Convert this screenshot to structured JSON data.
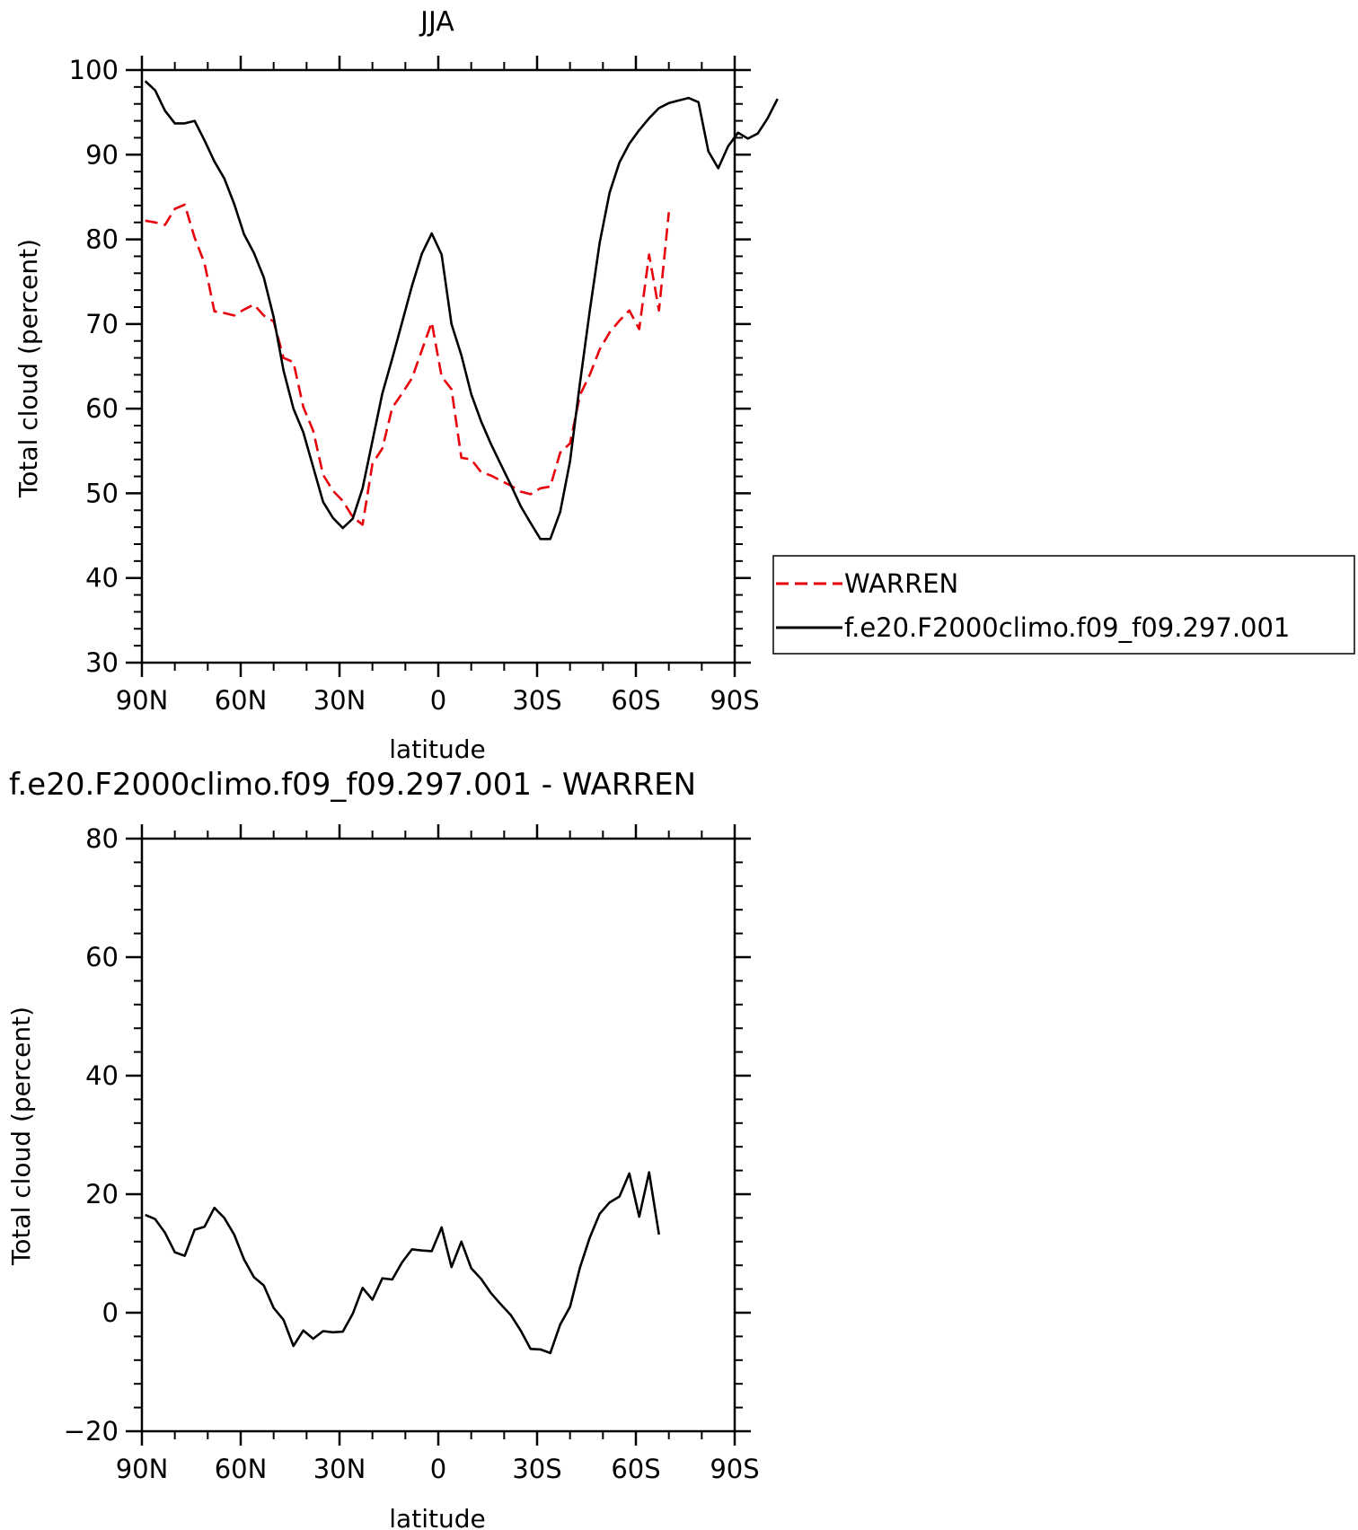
{
  "chart_data": [
    {
      "type": "line",
      "title": "JJA",
      "xlabel": "latitude",
      "ylabel": "Total cloud (percent)",
      "xlim": [
        90,
        -90
      ],
      "ylim": [
        30,
        100
      ],
      "xticks": [
        90,
        60,
        30,
        0,
        -30,
        -60,
        -90
      ],
      "xtick_labels": [
        "90N",
        "60N",
        "30N",
        "0",
        "30S",
        "60S",
        "90S"
      ],
      "yticks": [
        30,
        40,
        50,
        60,
        70,
        80,
        90,
        100
      ],
      "ytick_labels": [
        "30",
        "40",
        "50",
        "60",
        "70",
        "80",
        "90",
        "100"
      ],
      "legend_position": "right",
      "series": [
        {
          "name": "WARREN",
          "color": "#e8000b",
          "dash": "dashed",
          "points": [
            [
              89,
              82.2
            ],
            [
              86,
              82
            ],
            [
              83,
              81.7
            ],
            [
              80,
              83.6
            ],
            [
              77,
              84.1
            ],
            [
              74,
              80.2
            ],
            [
              71,
              77.2
            ],
            [
              68,
              71.5
            ],
            [
              65,
              71.3
            ],
            [
              62,
              71
            ],
            [
              59,
              71.7
            ],
            [
              56,
              72.3
            ],
            [
              53,
              71
            ],
            [
              50,
              70.3
            ],
            [
              47,
              66
            ],
            [
              44,
              65.5
            ],
            [
              41,
              60.2
            ],
            [
              38,
              57.4
            ],
            [
              35,
              52.2
            ],
            [
              32,
              50.3
            ],
            [
              29,
              49.1
            ],
            [
              26,
              47.2
            ],
            [
              23,
              46.3
            ],
            [
              20,
              53.5
            ],
            [
              17,
              55.3
            ],
            [
              14,
              60.1
            ],
            [
              11,
              61.8
            ],
            [
              8,
              63.6
            ],
            [
              5,
              66.9
            ],
            [
              2,
              70.2
            ],
            [
              -1,
              63.8
            ],
            [
              -4,
              62.3
            ],
            [
              -7,
              54.2
            ],
            [
              -10,
              54
            ],
            [
              -13,
              52.5
            ],
            [
              -16,
              52.1
            ],
            [
              -19,
              51.5
            ],
            [
              -22,
              50.9
            ],
            [
              -25,
              50.2
            ],
            [
              -28,
              49.9
            ],
            [
              -31,
              50.6
            ],
            [
              -34,
              50.8
            ],
            [
              -37,
              54.8
            ],
            [
              -40,
              55.9
            ],
            [
              -43,
              61.6
            ],
            [
              -46,
              64
            ],
            [
              -49,
              67
            ],
            [
              -52,
              69
            ],
            [
              -55,
              70.4
            ],
            [
              -58,
              71.6
            ],
            [
              -61,
              69.4
            ],
            [
              -64,
              78.2
            ],
            [
              -67,
              71.6
            ],
            [
              -70,
              83.2
            ]
          ]
        },
        {
          "name": "f.e20.F2000climo.f09_f09.297.001",
          "color": "#000000",
          "dash": "solid",
          "points": [
            [
              89,
              98.7
            ],
            [
              86,
              97.6
            ],
            [
              83,
              95.2
            ],
            [
              80,
              93.7
            ],
            [
              77,
              93.7
            ],
            [
              74,
              94
            ],
            [
              71,
              91.7
            ],
            [
              68,
              89.2
            ],
            [
              65,
              87.2
            ],
            [
              62,
              84.2
            ],
            [
              59,
              80.6
            ],
            [
              56,
              78.4
            ],
            [
              53,
              75.5
            ],
            [
              50,
              70.8
            ],
            [
              47,
              64.5
            ],
            [
              44,
              60
            ],
            [
              41,
              57.2
            ],
            [
              38,
              53.1
            ],
            [
              35,
              49
            ],
            [
              32,
              47.1
            ],
            [
              29,
              45.9
            ],
            [
              26,
              47
            ],
            [
              23,
              50.6
            ],
            [
              20,
              56.2
            ],
            [
              17,
              61.8
            ],
            [
              14,
              65.9
            ],
            [
              11,
              70.2
            ],
            [
              8,
              74.5
            ],
            [
              5,
              78.3
            ],
            [
              2,
              80.7
            ],
            [
              -1,
              78.2
            ],
            [
              -4,
              70
            ],
            [
              -7,
              66.3
            ],
            [
              -10,
              61.7
            ],
            [
              -13,
              58.5
            ],
            [
              -16,
              55.8
            ],
            [
              -19,
              53.4
            ],
            [
              -22,
              51
            ],
            [
              -25,
              48.5
            ],
            [
              -28,
              46.5
            ],
            [
              -31,
              44.6
            ],
            [
              -34,
              44.6
            ],
            [
              -37,
              47.8
            ],
            [
              -40,
              53.8
            ],
            [
              -43,
              63
            ],
            [
              -46,
              71.6
            ],
            [
              -49,
              79.6
            ],
            [
              -52,
              85.5
            ],
            [
              -55,
              89.1
            ],
            [
              -58,
              91.3
            ],
            [
              -61,
              92.9
            ],
            [
              -64,
              94.3
            ],
            [
              -67,
              95.5
            ],
            [
              -70,
              96.1
            ],
            [
              -73,
              96.4
            ],
            [
              -76,
              96.7
            ],
            [
              -79,
              96.2
            ],
            [
              -82,
              90.4
            ],
            [
              -85,
              88.4
            ],
            [
              -88,
              91
            ],
            [
              -91,
              92.6
            ],
            [
              -94,
              91.9
            ],
            [
              -97,
              92.5
            ],
            [
              -100,
              94.3
            ],
            [
              -103,
              96.6
            ]
          ]
        }
      ]
    },
    {
      "type": "line",
      "title": "f.e20.F2000climo.f09_f09.297.001 - WARREN",
      "xlabel": "latitude",
      "ylabel": "Total cloud (percent)",
      "xlim": [
        90,
        -90
      ],
      "ylim": [
        -20,
        80
      ],
      "xticks": [
        90,
        60,
        30,
        0,
        -30,
        -60,
        -90
      ],
      "xtick_labels": [
        "90N",
        "60N",
        "30N",
        "0",
        "30S",
        "60S",
        "90S"
      ],
      "yticks": [
        -20,
        0,
        20,
        40,
        60,
        80
      ],
      "ytick_labels": [
        "−20",
        "0",
        "20",
        "40",
        "60",
        "80"
      ],
      "series": [
        {
          "color": "#000000",
          "dash": "solid",
          "points": [
            [
              89,
              16.5
            ],
            [
              86,
              15.8
            ],
            [
              83,
              13.5
            ],
            [
              80,
              10.2
            ],
            [
              77,
              9.6
            ],
            [
              74,
              14
            ],
            [
              71,
              14.5
            ],
            [
              68,
              17.7
            ],
            [
              65,
              16
            ],
            [
              62,
              13.2
            ],
            [
              59,
              9
            ],
            [
              56,
              6
            ],
            [
              53,
              4.6
            ],
            [
              50,
              0.8
            ],
            [
              47,
              -1.2
            ],
            [
              44,
              -5.6
            ],
            [
              41,
              -3
            ],
            [
              38,
              -4.4
            ],
            [
              35,
              -3.1
            ],
            [
              32,
              -3.3
            ],
            [
              29,
              -3.2
            ],
            [
              26,
              -0.2
            ],
            [
              23,
              4.2
            ],
            [
              20,
              2.2
            ],
            [
              17,
              5.8
            ],
            [
              14,
              5.6
            ],
            [
              11,
              8.5
            ],
            [
              8,
              10.7
            ],
            [
              5,
              10.5
            ],
            [
              2,
              10.4
            ],
            [
              -1,
              14.4
            ],
            [
              -4,
              7.7
            ],
            [
              -7,
              12
            ],
            [
              -10,
              7.5
            ],
            [
              -13,
              5.7
            ],
            [
              -16,
              3.3
            ],
            [
              -19,
              1.4
            ],
            [
              -22,
              -0.4
            ],
            [
              -25,
              -3
            ],
            [
              -28,
              -6.1
            ],
            [
              -31,
              -6.2
            ],
            [
              -34,
              -6.8
            ],
            [
              -37,
              -2
            ],
            [
              -40,
              1
            ],
            [
              -43,
              7.6
            ],
            [
              -46,
              12.7
            ],
            [
              -49,
              16.7
            ],
            [
              -52,
              18.6
            ],
            [
              -55,
              19.6
            ],
            [
              -58,
              23.5
            ],
            [
              -61,
              16.2
            ],
            [
              -64,
              23.7
            ],
            [
              -67,
              13.2
            ]
          ]
        }
      ]
    }
  ]
}
